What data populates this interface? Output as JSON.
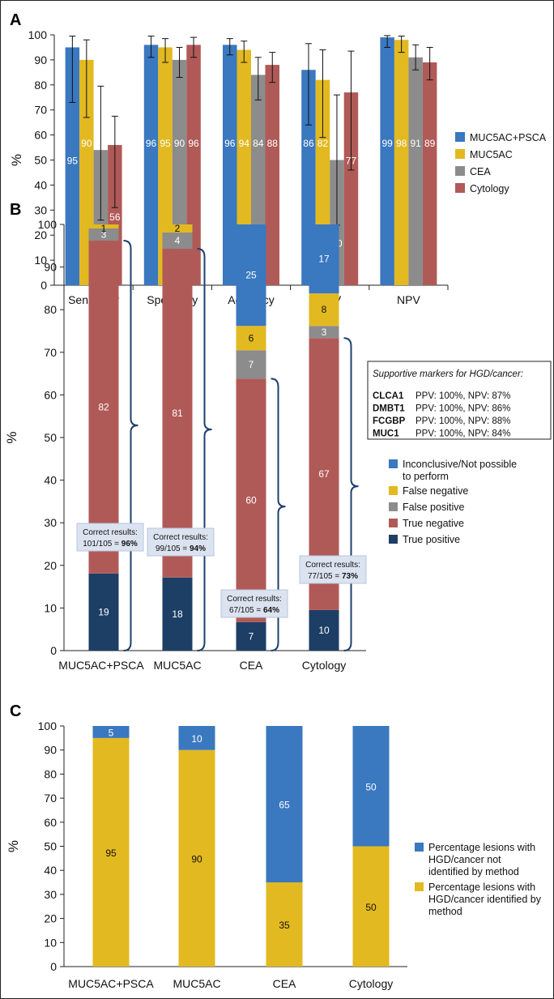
{
  "colors": {
    "blue": "#3a78bf",
    "yellow": "#e2b920",
    "gray": "#8c8c8c",
    "red": "#b05a58",
    "navy": "#1d3f66",
    "brace": "#1f3f6e",
    "boxfill": "#dce3f0"
  },
  "chart_data": [
    {
      "panel": "A",
      "type": "bar",
      "ylabel": "%",
      "ylim": [
        0,
        100
      ],
      "yticks": [
        "0",
        "10",
        "20",
        "30",
        "40",
        "50",
        "60",
        "70",
        "80",
        "90",
        "100"
      ],
      "categories": [
        "Sensitivity",
        "Specificity",
        "Accuracy",
        "PPV",
        "NPV"
      ],
      "series": [
        {
          "name": "MUC5AC+PSCA",
          "values": [
            95,
            96,
            96,
            86,
            99
          ],
          "labels": [
            "95",
            "96",
            "96",
            "86",
            "99"
          ],
          "err_low": [
            73,
            91,
            92,
            64,
            95
          ],
          "err_high": [
            99.5,
            99.5,
            98.5,
            96.5,
            99.7
          ]
        },
        {
          "name": "MUC5AC",
          "values": [
            90,
            95,
            94,
            82,
            98
          ],
          "labels": [
            "90",
            "95",
            "94",
            "82",
            "98"
          ],
          "err_low": [
            67,
            89,
            89,
            59,
            93
          ],
          "err_high": [
            98,
            98.5,
            97.5,
            94,
            99.5
          ]
        },
        {
          "name": "CEA",
          "values": [
            54,
            90,
            84,
            50,
            91
          ],
          "labels": [
            "54",
            "90",
            "84",
            "50",
            "91"
          ],
          "err_low": [
            26,
            83,
            74,
            24,
            86
          ],
          "err_high": [
            79.5,
            95,
            91,
            76,
            96
          ]
        },
        {
          "name": "Cytology",
          "values": [
            56,
            96,
            88,
            77,
            89
          ],
          "labels": [
            "56",
            "96",
            "88",
            "77",
            "89"
          ],
          "err_low": [
            31,
            91,
            81,
            46,
            82
          ],
          "err_high": [
            67.5,
            99,
            93,
            93.5,
            95
          ]
        }
      ]
    },
    {
      "panel": "B",
      "type": "bar",
      "stacked": true,
      "ylabel": "%",
      "ylim": [
        0,
        100
      ],
      "yticks": [
        "0",
        "10",
        "20",
        "30",
        "40",
        "50",
        "60",
        "70",
        "80",
        "90",
        "100"
      ],
      "categories": [
        "MUC5AC+PSCA",
        "MUC5AC",
        "CEA",
        "Cytology"
      ],
      "series": [
        {
          "name": "True positive",
          "values": [
            19,
            18,
            7,
            10
          ],
          "labels": [
            "19",
            "18",
            "7",
            "10"
          ]
        },
        {
          "name": "True negative",
          "values": [
            82,
            81,
            60,
            67
          ],
          "labels": [
            "82",
            "81",
            "60",
            "67"
          ]
        },
        {
          "name": "False positive",
          "values": [
            3,
            4,
            7,
            3
          ],
          "labels": [
            "3",
            "4",
            "7",
            "3"
          ]
        },
        {
          "name": "False negative",
          "values": [
            1,
            2,
            6,
            8
          ],
          "labels": [
            "1",
            "2",
            "6",
            "8"
          ]
        },
        {
          "name": "Inconclusive/Not possible to perform",
          "values": [
            0,
            0,
            25,
            17
          ],
          "labels": [
            "",
            "",
            "25",
            "17"
          ]
        }
      ],
      "legend_lines": [
        [
          "Inconclusive/Not possible",
          "to perform"
        ],
        [
          "False negative"
        ],
        [
          "False positive"
        ],
        [
          "True negative"
        ],
        [
          "True positive"
        ]
      ],
      "correct_results": [
        {
          "label": "Correct results:",
          "fraction": "101/105 = ",
          "pct": "96%"
        },
        {
          "label": "Correct results:",
          "fraction": "99/105 = ",
          "pct": "94%"
        },
        {
          "label": "Correct results:",
          "fraction": "67/105 = ",
          "pct": "64%"
        },
        {
          "label": "Correct results:",
          "fraction": "77/105 = ",
          "pct": "73%"
        }
      ],
      "markers_box": {
        "title": "Supportive markers for HGD/cancer:",
        "rows": [
          {
            "name": "CLCA1",
            "value": "PPV: 100%, NPV: 87%"
          },
          {
            "name": "DMBT1",
            "value": "PPV: 100%, NPV: 86%"
          },
          {
            "name": "FCGBP",
            "value": "PPV: 100%, NPV: 88%"
          },
          {
            "name": "MUC1",
            "value": "PPV: 100%, NPV: 84%"
          }
        ]
      }
    },
    {
      "panel": "C",
      "type": "bar",
      "stacked": true,
      "ylabel": "%",
      "ylim": [
        0,
        100
      ],
      "yticks": [
        "0",
        "10",
        "20",
        "30",
        "40",
        "50",
        "60",
        "70",
        "80",
        "90",
        "100"
      ],
      "categories": [
        "MUC5AC+PSCA",
        "MUC5AC",
        "CEA",
        "Cytology"
      ],
      "series": [
        {
          "name": "Percentage lesions with HGD/cancer identified by method",
          "values": [
            95,
            90,
            35,
            50
          ],
          "labels": [
            "95",
            "90",
            "35",
            "50"
          ]
        },
        {
          "name": "Percentage lesions with HGD/cancer not identified by method",
          "values": [
            5,
            10,
            65,
            50
          ],
          "labels": [
            "5",
            "10",
            "65",
            "50"
          ]
        }
      ],
      "legend_lines": [
        [
          "Percentage lesions with",
          "HGD/cancer not",
          "identified by method"
        ],
        [
          "Percentage lesions with",
          "HGD/cancer identified by",
          "method"
        ]
      ]
    }
  ]
}
